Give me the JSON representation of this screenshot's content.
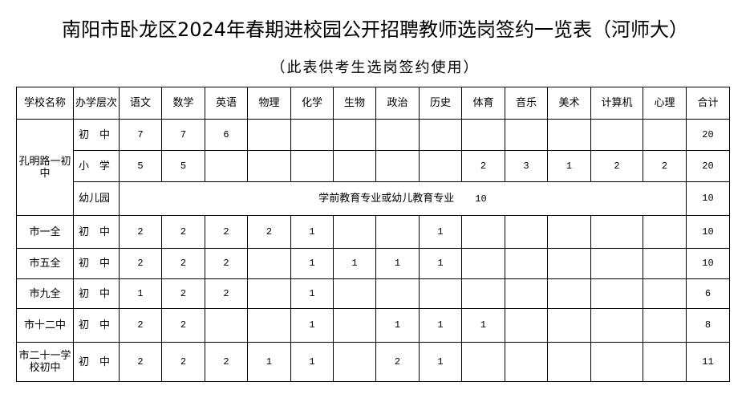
{
  "title": "南阳市卧龙区2024年春期进校园公开招聘教师选岗签约一览表（河师大）",
  "subtitle": "（此表供考生选岗签约使用）",
  "table": {
    "headers": [
      "学校名称",
      "办学层次",
      "语文",
      "数学",
      "英语",
      "物理",
      "化学",
      "生物",
      "政治",
      "历史",
      "体育",
      "音乐",
      "美术",
      "计算机",
      "心理",
      "合计"
    ],
    "rows": [
      {
        "school": "孔明路一初中",
        "level": "初　中",
        "cells": [
          "7",
          "7",
          "6",
          "",
          "",
          "",
          "",
          "",
          "",
          "",
          "",
          "",
          ""
        ],
        "total": "20"
      },
      {
        "school": "",
        "level": "小　学",
        "cells": [
          "5",
          "5",
          "",
          "",
          "",
          "",
          "",
          "",
          "2",
          "3",
          "1",
          "2",
          "2"
        ],
        "total": "20"
      },
      {
        "school": "",
        "level": "幼儿园",
        "kg_text": "学前教育专业或幼儿教育专业",
        "kg_value": "10",
        "total": "10"
      },
      {
        "school": "市一全",
        "level": "初　中",
        "cells": [
          "2",
          "2",
          "2",
          "2",
          "1",
          "",
          "",
          "1",
          "",
          "",
          "",
          "",
          ""
        ],
        "total": "10"
      },
      {
        "school": "市五全",
        "level": "初　中",
        "cells": [
          "2",
          "2",
          "2",
          "",
          "1",
          "1",
          "1",
          "1",
          "",
          "",
          "",
          "",
          ""
        ],
        "total": "10"
      },
      {
        "school": "市九全",
        "level": "初　中",
        "cells": [
          "1",
          "2",
          "2",
          "",
          "1",
          "",
          "",
          "",
          "",
          "",
          "",
          "",
          ""
        ],
        "total": "6"
      },
      {
        "school": "市十二中",
        "level": "初　中",
        "cells": [
          "2",
          "2",
          "",
          "",
          "1",
          "",
          "1",
          "1",
          "1",
          "",
          "",
          "",
          ""
        ],
        "total": "8"
      },
      {
        "school": "市二十一学校初中",
        "level": "初　中",
        "cells": [
          "2",
          "2",
          "2",
          "1",
          "1",
          "",
          "2",
          "1",
          "",
          "",
          "",
          "",
          ""
        ],
        "total": "11"
      }
    ]
  }
}
